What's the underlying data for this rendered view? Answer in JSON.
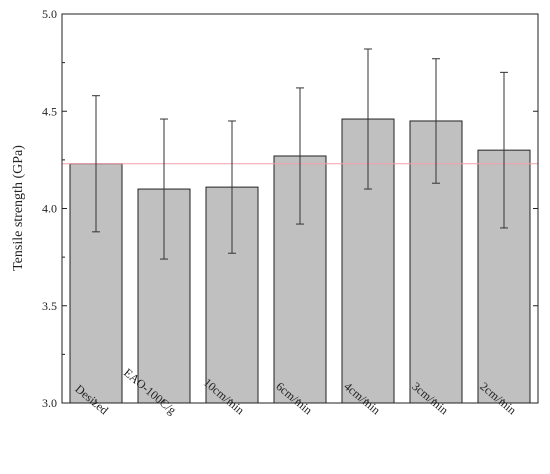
{
  "chart_data": {
    "type": "bar",
    "xlabel": "",
    "ylabel": "Tensile strength (GPa)",
    "ylim": [
      3.0,
      5.0
    ],
    "yticks": [
      "3.0",
      "3.5",
      "4.0",
      "4.5",
      "5.0"
    ],
    "categories": [
      "Desized",
      "EAO-100C/g",
      "10cm/min",
      "6cm/min",
      "4cm/min",
      "3cm/min",
      "2cm/min"
    ],
    "values": [
      4.23,
      4.1,
      4.11,
      4.27,
      4.46,
      4.45,
      4.3
    ],
    "error_low": [
      3.88,
      3.74,
      3.77,
      3.92,
      4.1,
      4.13,
      3.9
    ],
    "error_high": [
      4.58,
      4.46,
      4.45,
      4.62,
      4.82,
      4.77,
      4.7
    ],
    "reference_line": 4.23,
    "grid": false,
    "colors": {
      "bar_fill": "#c0c0c0",
      "bar_stroke": "#222222",
      "reference_line": "#f0a0a8",
      "axis": "#222222"
    }
  }
}
